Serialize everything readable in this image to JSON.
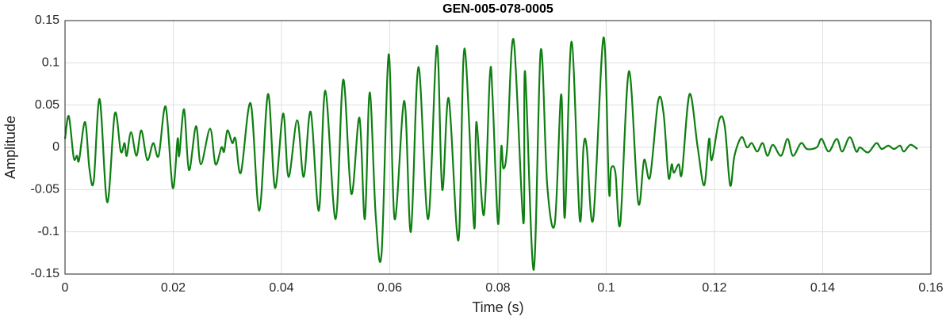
{
  "chart_data": {
    "type": "line",
    "title": "GEN-005-078-0005",
    "xlabel": "Time (s)",
    "ylabel": "Amplitude",
    "xlim": [
      0,
      0.16
    ],
    "ylim": [
      -0.15,
      0.15
    ],
    "xticks": [
      0,
      0.02,
      0.04,
      0.06,
      0.08,
      0.1,
      0.12,
      0.14,
      0.16
    ],
    "yticks": [
      -0.15,
      -0.1,
      -0.05,
      0,
      0.05,
      0.1,
      0.15
    ],
    "grid": true,
    "x": [
      0,
      0.0007,
      0.0016,
      0.0022,
      0.0026,
      0.0037,
      0.0045,
      0.0053,
      0.0064,
      0.0078,
      0.0092,
      0.0103,
      0.011,
      0.0114,
      0.0122,
      0.0132,
      0.0141,
      0.0152,
      0.0163,
      0.0173,
      0.0186,
      0.0199,
      0.0208,
      0.0211,
      0.022,
      0.0229,
      0.0242,
      0.0251,
      0.0268,
      0.0278,
      0.0289,
      0.0294,
      0.03,
      0.0309,
      0.0315,
      0.0325,
      0.0343,
      0.0359,
      0.0375,
      0.0388,
      0.0403,
      0.0413,
      0.0429,
      0.0441,
      0.0454,
      0.0469,
      0.0481,
      0.05,
      0.0514,
      0.0529,
      0.0544,
      0.0554,
      0.0563,
      0.0574,
      0.0585,
      0.0598,
      0.0609,
      0.0627,
      0.0639,
      0.0653,
      0.0671,
      0.0687,
      0.0697,
      0.0709,
      0.0727,
      0.0738,
      0.0756,
      0.076,
      0.0774,
      0.0785,
      0.079,
      0.08,
      0.0806,
      0.081,
      0.0817,
      0.0829,
      0.0847,
      0.085,
      0.0866,
      0.0879,
      0.0891,
      0.0905,
      0.0916,
      0.092,
      0.0924,
      0.0936,
      0.0951,
      0.0958,
      0.0964,
      0.0976,
      0.0995,
      0.1005,
      0.1009,
      0.1017,
      0.1026,
      0.1042,
      0.1059,
      0.107,
      0.1081,
      0.1096,
      0.1106,
      0.1115,
      0.1121,
      0.1125,
      0.1134,
      0.114,
      0.1154,
      0.1169,
      0.1181,
      0.119,
      0.1195,
      0.1209,
      0.1219,
      0.1229,
      0.1237,
      0.125,
      0.126,
      0.1269,
      0.1279,
      0.1289,
      0.1298,
      0.1308,
      0.1323,
      0.1335,
      0.1345,
      0.136,
      0.1371,
      0.1389,
      0.1398,
      0.1411,
      0.1426,
      0.1436,
      0.145,
      0.1462,
      0.1469,
      0.1484,
      0.1499,
      0.1509,
      0.1521,
      0.1532,
      0.1543,
      0.155,
      0.1562,
      0.1575
    ],
    "series": [
      {
        "name": "Amplitude",
        "color": "#0f7f12",
        "values": [
          0.01,
          0.037,
          -0.012,
          -0.01,
          -0.015,
          0.03,
          -0.025,
          -0.04,
          0.057,
          -0.065,
          0.04,
          -0.005,
          0.005,
          -0.01,
          0.018,
          -0.01,
          0.02,
          -0.015,
          0.005,
          -0.01,
          0.048,
          -0.048,
          0.01,
          -0.01,
          0.045,
          -0.027,
          0.025,
          -0.02,
          0.022,
          -0.02,
          0,
          -0.005,
          0.02,
          0.005,
          0.01,
          -0.03,
          0.052,
          -0.075,
          0.063,
          -0.048,
          0.04,
          -0.035,
          0.032,
          -0.035,
          0.042,
          -0.075,
          0.067,
          -0.085,
          0.08,
          -0.055,
          0.035,
          -0.085,
          0.065,
          -0.08,
          -0.125,
          0.11,
          -0.085,
          0.055,
          -0.1,
          0.095,
          -0.085,
          0.12,
          -0.05,
          0.058,
          -0.11,
          0.117,
          -0.095,
          0.03,
          -0.08,
          0.085,
          0.06,
          -0.09,
          0,
          -0.025,
          0,
          0.127,
          -0.09,
          0.09,
          -0.145,
          0.115,
          -0.045,
          -0.09,
          0.06,
          0,
          -0.08,
          0.125,
          -0.085,
          0,
          0,
          -0.085,
          0.13,
          -0.05,
          -0.025,
          -0.03,
          -0.09,
          0.09,
          -0.065,
          -0.015,
          -0.035,
          0.055,
          0.04,
          -0.035,
          -0.02,
          -0.03,
          -0.02,
          -0.03,
          0.063,
          0,
          -0.045,
          0.01,
          -0.015,
          0.033,
          0.025,
          -0.045,
          -0.01,
          0.012,
          0,
          0.005,
          -0.005,
          0.005,
          -0.01,
          0.003,
          -0.01,
          0.01,
          -0.01,
          0.005,
          -0.002,
          0,
          0.01,
          -0.005,
          0.01,
          -0.005,
          0.012,
          -0.005,
          0,
          -0.006,
          0.005,
          -0.002,
          0.002,
          -0.002,
          0.002,
          -0.005,
          0.003,
          -0.002
        ]
      }
    ]
  }
}
